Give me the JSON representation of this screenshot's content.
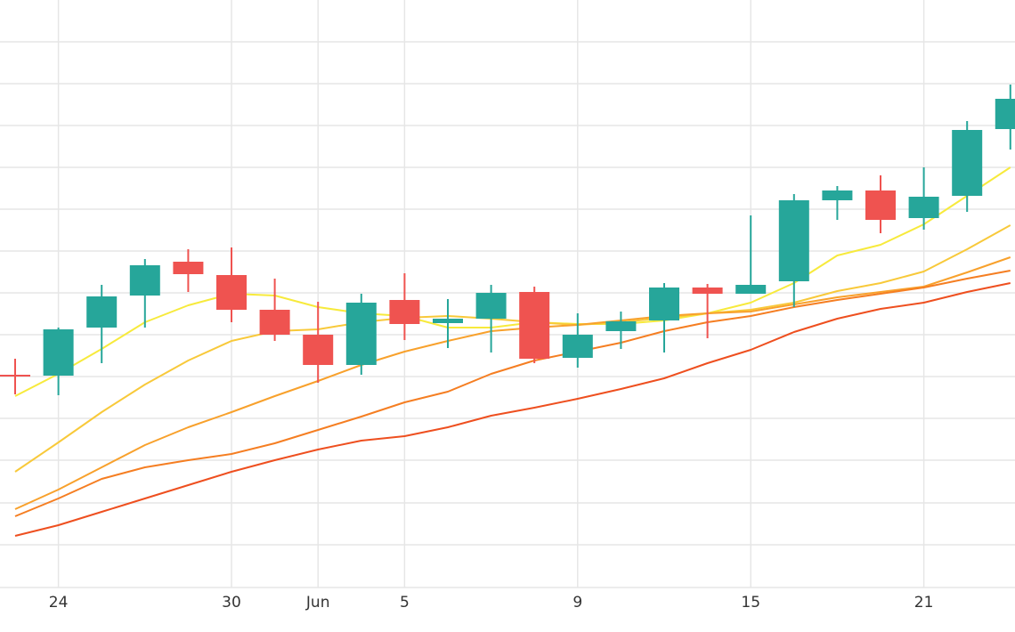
{
  "chart_data": {
    "type": "candlestick",
    "categories": [
      null,
      "24",
      null,
      null,
      null,
      "30",
      null,
      "Jun",
      null,
      "5",
      null,
      null,
      null,
      "9",
      null,
      null,
      null,
      "15",
      null,
      null,
      null,
      "21",
      null,
      null
    ],
    "open": [
      239,
      238,
      292,
      328,
      366,
      351,
      312,
      284,
      250,
      323,
      297,
      302,
      332,
      258,
      288,
      300,
      337,
      330,
      344,
      435,
      446,
      415,
      440,
      515
    ],
    "high": [
      257,
      292,
      340,
      369,
      380,
      382,
      347,
      321,
      330,
      353,
      324,
      340,
      338,
      308,
      310,
      342,
      341,
      418,
      442,
      451,
      463,
      472,
      524,
      565
    ],
    "low": [
      217,
      216,
      252,
      292,
      332,
      298,
      277,
      230,
      239,
      278,
      269,
      264,
      252,
      247,
      268,
      264,
      280,
      330,
      315,
      413,
      398,
      402,
      422,
      492
    ],
    "close": [
      238,
      290,
      327,
      362,
      352,
      312,
      284,
      250,
      320,
      296,
      302,
      331,
      257,
      284,
      299,
      337,
      330,
      340,
      435,
      446,
      413,
      439,
      514,
      549
    ],
    "up_color": "#26a69a",
    "down_color": "#ef5350",
    "series": [
      {
        "color": "#f7ea3c",
        "values": [
          215,
          240,
          268,
          298,
          317,
          330,
          328,
          315,
          308,
          305,
          292,
          292,
          298,
          296,
          296,
          300,
          308,
          320,
          342,
          373,
          385,
          408,
          440,
          472
        ]
      },
      {
        "color": "#f8c93a",
        "values": [
          130,
          163,
          197,
          228,
          255,
          277,
          288,
          290,
          298,
          303,
          305,
          302,
          298,
          295,
          298,
          303,
          308,
          312,
          320,
          333,
          342,
          355,
          380,
          407
        ]
      },
      {
        "color": "#f8a12c",
        "values": [
          88,
          110,
          135,
          160,
          180,
          197,
          215,
          232,
          250,
          265,
          277,
          288,
          292,
          295,
          300,
          305,
          308,
          310,
          318,
          326,
          332,
          338,
          354,
          371
        ]
      },
      {
        "color": "#f57e22",
        "values": [
          80,
          100,
          122,
          135,
          143,
          150,
          162,
          177,
          192,
          208,
          220,
          240,
          255,
          265,
          275,
          288,
          298,
          305,
          315,
          323,
          330,
          337,
          347,
          356
        ]
      },
      {
        "color": "#ee4f1f",
        "values": [
          58,
          70,
          85,
          100,
          115,
          130,
          143,
          155,
          165,
          170,
          180,
          193,
          202,
          212,
          223,
          235,
          252,
          267,
          287,
          302,
          313,
          320,
          332,
          342
        ]
      }
    ],
    "ylim": [
      0,
      660
    ],
    "yticks": [
      48,
      95,
      143,
      190,
      237,
      284,
      331,
      378,
      425,
      472,
      519,
      566,
      613
    ],
    "grid": true
  }
}
